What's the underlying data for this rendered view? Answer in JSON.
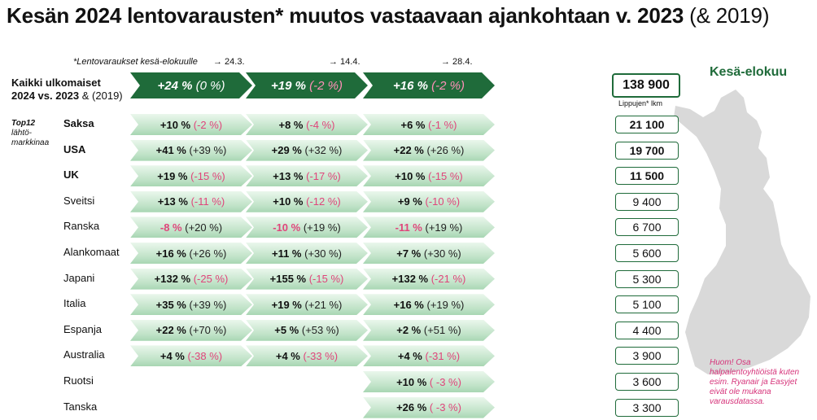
{
  "title": {
    "bold_part": "Kesän 2024 lentovarausten* muutos vastaavaan ajankohtaan v. 2023",
    "light_part": "(& 2019)"
  },
  "footnote": "*Lentovaraukset kesä-elokuulle",
  "dates": [
    "→ 24.3.",
    "→ 14.4.",
    "→ 28.4."
  ],
  "main_label": {
    "line1": "Kaikki ulkomaiset",
    "line2_bold": "2024 vs. 2023",
    "line2_normal": "& (2019)"
  },
  "side_label": {
    "line1": "Top12",
    "line2": "lähtö-",
    "line3": "markkinaa"
  },
  "total_row": [
    {
      "change": "+24 %",
      "vs2019": "(0 %)",
      "neg": false
    },
    {
      "change": "+19 %",
      "vs2019": "(-2 %)",
      "neg": true
    },
    {
      "change": "+16 %",
      "vs2019": "(-2 %)",
      "neg": true
    }
  ],
  "total_tickets": "138 900",
  "tickets_label": "Lippujen* lkm",
  "map_title": "Kesä-elokuu",
  "warning": "Huom! Osa halpalentoyhtiöistä kuten esim. Ryanair ja Easyjet  eivät ole mukana varausdatassa.",
  "rows": [
    {
      "country": "Saksa",
      "bold": true,
      "tickets": "21 100",
      "tickets_bold": true,
      "cells": [
        {
          "change": "+10 %",
          "cmp": "(-2 %)",
          "cmp_neg": true,
          "change_neg": false
        },
        {
          "change": "+8 %",
          "cmp": "(-4 %)",
          "cmp_neg": true,
          "change_neg": false
        },
        {
          "change": "+6 %",
          "cmp": "(-1 %)",
          "cmp_neg": true,
          "change_neg": false
        }
      ]
    },
    {
      "country": "USA",
      "bold": true,
      "tickets": "19 700",
      "tickets_bold": true,
      "cells": [
        {
          "change": "+41 %",
          "cmp": "(+39 %)",
          "cmp_neg": false,
          "change_neg": false
        },
        {
          "change": "+29 %",
          "cmp": "(+32 %)",
          "cmp_neg": false,
          "change_neg": false
        },
        {
          "change": "+22 %",
          "cmp": "(+26 %)",
          "cmp_neg": false,
          "change_neg": false
        }
      ]
    },
    {
      "country": "UK",
      "bold": true,
      "tickets": "11 500",
      "tickets_bold": true,
      "cells": [
        {
          "change": "+19 %",
          "cmp": "(-15 %)",
          "cmp_neg": true,
          "change_neg": false
        },
        {
          "change": "+13 %",
          "cmp": "(-17 %)",
          "cmp_neg": true,
          "change_neg": false
        },
        {
          "change": "+10 %",
          "cmp": "(-15 %)",
          "cmp_neg": true,
          "change_neg": false
        }
      ]
    },
    {
      "country": "Sveitsi",
      "bold": false,
      "tickets": "9 400",
      "tickets_bold": false,
      "cells": [
        {
          "change": "+13 %",
          "cmp": "(-11 %)",
          "cmp_neg": true,
          "change_neg": false
        },
        {
          "change": "+10 %",
          "cmp": "(-12 %)",
          "cmp_neg": true,
          "change_neg": false
        },
        {
          "change": "+9 %",
          "cmp": "(-10 %)",
          "cmp_neg": true,
          "change_neg": false
        }
      ]
    },
    {
      "country": "Ranska",
      "bold": false,
      "tickets": "6 700",
      "tickets_bold": false,
      "cells": [
        {
          "change": "-8 %",
          "cmp": "(+20 %)",
          "cmp_neg": false,
          "change_neg": true
        },
        {
          "change": "-10 %",
          "cmp": "(+19 %)",
          "cmp_neg": false,
          "change_neg": true
        },
        {
          "change": "-11 %",
          "cmp": "(+19 %)",
          "cmp_neg": false,
          "change_neg": true
        }
      ]
    },
    {
      "country": "Alankomaat",
      "bold": false,
      "tickets": "5 600",
      "tickets_bold": false,
      "cells": [
        {
          "change": "+16 %",
          "cmp": "(+26 %)",
          "cmp_neg": false,
          "change_neg": false
        },
        {
          "change": "+11 %",
          "cmp": "(+30 %)",
          "cmp_neg": false,
          "change_neg": false
        },
        {
          "change": "+7 %",
          "cmp": "(+30 %)",
          "cmp_neg": false,
          "change_neg": false
        }
      ]
    },
    {
      "country": "Japani",
      "bold": false,
      "tickets": "5 300",
      "tickets_bold": false,
      "cells": [
        {
          "change": "+132 %",
          "cmp": "(-25 %)",
          "cmp_neg": true,
          "change_neg": false
        },
        {
          "change": "+155 %",
          "cmp": "(-15 %)",
          "cmp_neg": true,
          "change_neg": false
        },
        {
          "change": "+132 %",
          "cmp": "(-21 %)",
          "cmp_neg": true,
          "change_neg": false
        }
      ]
    },
    {
      "country": "Italia",
      "bold": false,
      "tickets": "5 100",
      "tickets_bold": false,
      "cells": [
        {
          "change": "+35 %",
          "cmp": "(+39 %)",
          "cmp_neg": false,
          "change_neg": false
        },
        {
          "change": "+19 %",
          "cmp": "(+21 %)",
          "cmp_neg": false,
          "change_neg": false
        },
        {
          "change": "+16 %",
          "cmp": "(+19 %)",
          "cmp_neg": false,
          "change_neg": false
        }
      ]
    },
    {
      "country": "Espanja",
      "bold": false,
      "tickets": "4 400",
      "tickets_bold": false,
      "cells": [
        {
          "change": "+22 %",
          "cmp": "(+70 %)",
          "cmp_neg": false,
          "change_neg": false
        },
        {
          "change": "+5 %",
          "cmp": "(+53 %)",
          "cmp_neg": false,
          "change_neg": false
        },
        {
          "change": "+2 %",
          "cmp": "(+51 %)",
          "cmp_neg": false,
          "change_neg": false
        }
      ]
    },
    {
      "country": "Australia",
      "bold": false,
      "tickets": "3 900",
      "tickets_bold": false,
      "cells": [
        {
          "change": "+4 %",
          "cmp": "(-38 %)",
          "cmp_neg": true,
          "change_neg": false
        },
        {
          "change": "+4 %",
          "cmp": "(-33 %)",
          "cmp_neg": true,
          "change_neg": false
        },
        {
          "change": "+4 %",
          "cmp": "(-31 %)",
          "cmp_neg": true,
          "change_neg": false
        }
      ]
    },
    {
      "country": "Ruotsi",
      "bold": false,
      "tickets": "3 600",
      "tickets_bold": false,
      "cells": [
        null,
        null,
        {
          "change": "+10 %",
          "cmp": "( -3 %)",
          "cmp_neg": true,
          "change_neg": false
        }
      ]
    },
    {
      "country": "Tanska",
      "bold": false,
      "tickets": "3 300",
      "tickets_bold": false,
      "cells": [
        null,
        null,
        {
          "change": "+26 %",
          "cmp": "( -3 %)",
          "cmp_neg": true,
          "change_neg": false
        }
      ]
    }
  ]
}
